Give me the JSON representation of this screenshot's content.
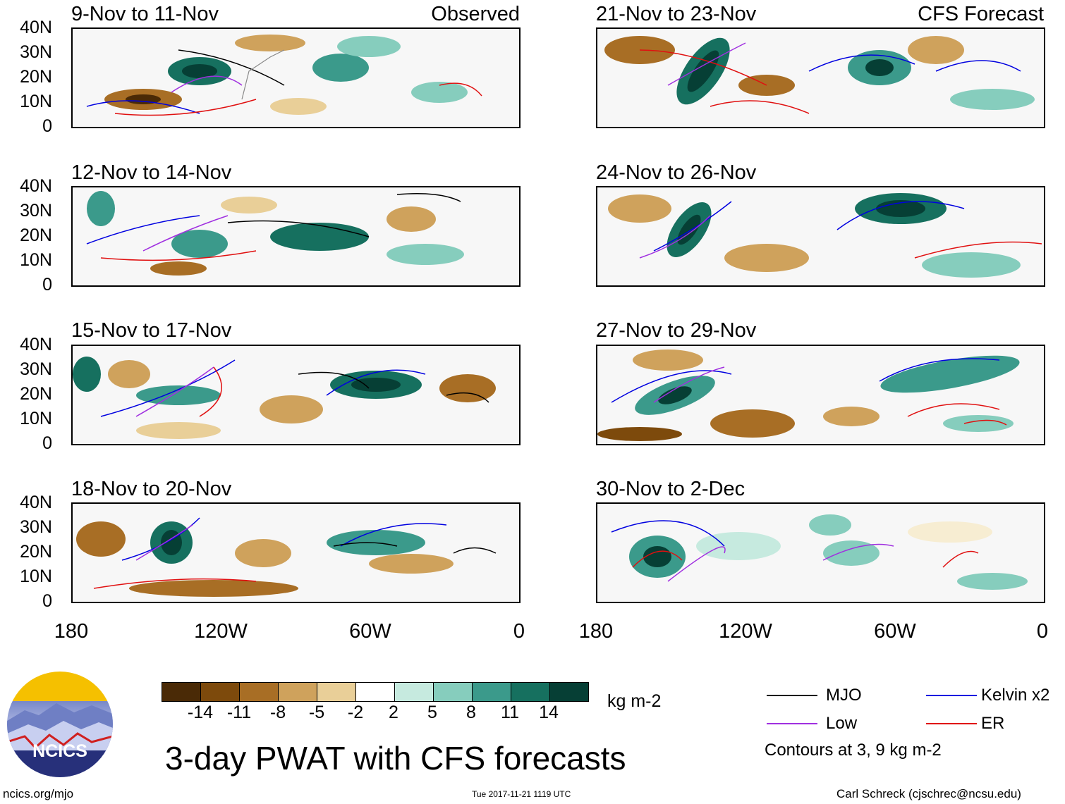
{
  "figure": {
    "title": "3-day PWAT with CFS forecasts",
    "url": "ncics.org/mjo",
    "timestamp": "Tue 2017-11-21 1119 UTC",
    "credit": "Carl Schreck (cjschrec@ncsu.edu)",
    "logo_text": "NCICS"
  },
  "axes": {
    "lat_labels": [
      "40N",
      "30N",
      "20N",
      "10N",
      "0"
    ],
    "lon_labels": [
      "180",
      "120W",
      "60W",
      "0"
    ]
  },
  "panels": {
    "left": [
      {
        "title": "9-Nov to 11-Nov",
        "tag": "Observed"
      },
      {
        "title": "12-Nov to 14-Nov",
        "tag": ""
      },
      {
        "title": "15-Nov to 17-Nov",
        "tag": ""
      },
      {
        "title": "18-Nov to 20-Nov",
        "tag": ""
      }
    ],
    "right": [
      {
        "title": "21-Nov to 23-Nov",
        "tag": "CFS Forecast"
      },
      {
        "title": "24-Nov to 26-Nov",
        "tag": ""
      },
      {
        "title": "27-Nov to 29-Nov",
        "tag": ""
      },
      {
        "title": "30-Nov to 2-Dec",
        "tag": ""
      }
    ]
  },
  "colorbar": {
    "unit": "kg m-2",
    "labels": [
      "-14",
      "-11",
      "-8",
      "-5",
      "-2",
      "2",
      "5",
      "8",
      "11",
      "14"
    ],
    "colors": [
      "#4a2a06",
      "#7d4a0c",
      "#a86e25",
      "#cfa25c",
      "#e9cf98",
      "#f7edd2",
      "#ffffff",
      "#c6eadf",
      "#86cdbd",
      "#3b9a8b",
      "#16705f",
      "#063f35"
    ]
  },
  "legend": {
    "items": [
      {
        "label": "MJO",
        "color": "#000000"
      },
      {
        "label": "Kelvin x2",
        "color": "#0000e0"
      },
      {
        "label": "Low",
        "color": "#a030e0"
      },
      {
        "label": "ER",
        "color": "#e01010"
      }
    ],
    "note": "Contours at 3, 9 kg m-2"
  }
}
